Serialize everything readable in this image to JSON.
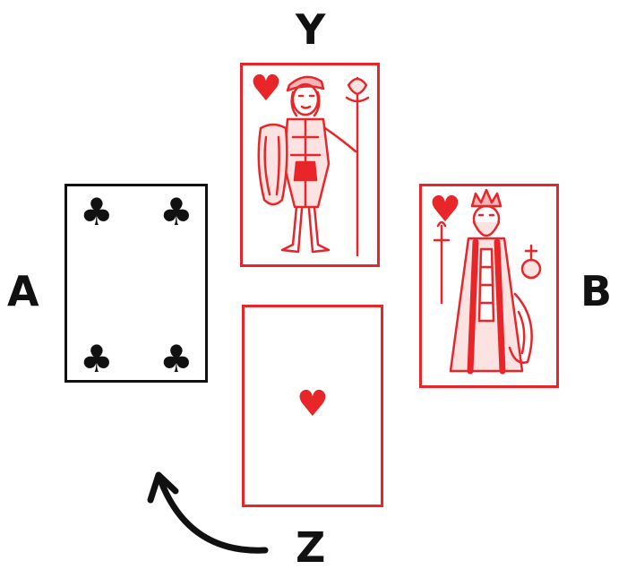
{
  "labels": {
    "top": "Y",
    "left": "A",
    "right": "B",
    "bottom": "Z"
  },
  "cards": {
    "a": {
      "name": "four of clubs",
      "suit": "clubs",
      "pip": "♣",
      "color": "#111111"
    },
    "y": {
      "name": "jack of hearts",
      "suit": "hearts",
      "pip": "♥",
      "color": "#e8262a"
    },
    "b": {
      "name": "king of hearts",
      "suit": "hearts",
      "pip": "♥",
      "color": "#e8262a"
    },
    "z": {
      "name": "ace of hearts",
      "suit": "hearts",
      "pip": "♥",
      "color": "#e8262a"
    }
  },
  "arrow": {
    "from": "Z",
    "to": "A",
    "icon": "curved-arrow-icon"
  },
  "colors": {
    "red": "#e8262a",
    "black": "#111111"
  }
}
